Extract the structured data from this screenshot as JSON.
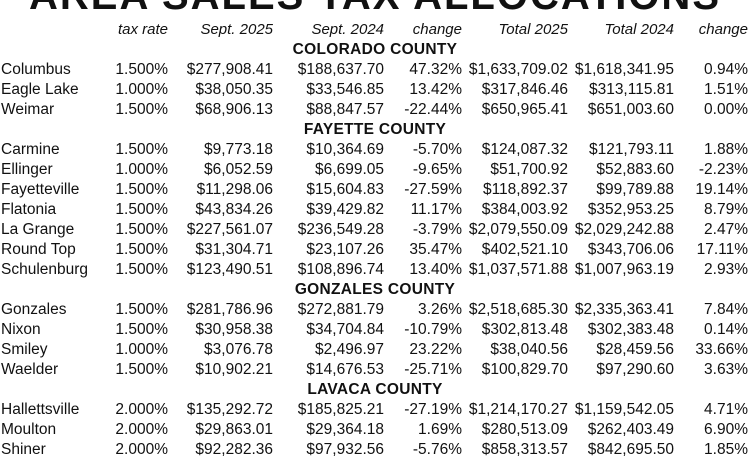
{
  "title": "AREA SALES TAX ALLOCATIONS",
  "headers": {
    "tax_rate": "tax rate",
    "sept_2025": "Sept. 2025",
    "sept_2024": "Sept. 2024",
    "change": "change",
    "total_2025": "Total 2025",
    "total_2024": "Total 2024",
    "change2": "change"
  },
  "sections": [
    {
      "county": "COLORADO COUNTY",
      "rows": [
        [
          "Columbus",
          "1.500%",
          "$277,908.41",
          "$188,637.70",
          "47.32%",
          "$1,633,709.02",
          "$1,618,341.95",
          "0.94%"
        ],
        [
          "Eagle Lake",
          "1.000%",
          "$38,050.35",
          "$33,546.85",
          "13.42%",
          "$317,846.46",
          "$313,115.81",
          "1.51%"
        ],
        [
          "Weimar",
          "1.500%",
          "$68,906.13",
          "$88,847.57",
          "-22.44%",
          "$650,965.41",
          "$651,003.60",
          "0.00%"
        ]
      ]
    },
    {
      "county": "FAYETTE COUNTY",
      "rows": [
        [
          "Carmine",
          "1.500%",
          "$9,773.18",
          "$10,364.69",
          "-5.70%",
          "$124,087.32",
          "$121,793.11",
          "1.88%"
        ],
        [
          "Ellinger",
          "1.000%",
          "$6,052.59",
          "$6,699.05",
          "-9.65%",
          "$51,700.92",
          "$52,883.60",
          "-2.23%"
        ],
        [
          "Fayetteville",
          "1.500%",
          "$11,298.06",
          "$15,604.83",
          "-27.59%",
          "$118,892.37",
          "$99,789.88",
          "19.14%"
        ],
        [
          "Flatonia",
          "1.500%",
          "$43,834.26",
          "$39,429.82",
          "11.17%",
          "$384,003.92",
          "$352,953.25",
          "8.79%"
        ],
        [
          "La Grange",
          "1.500%",
          "$227,561.07",
          "$236,549.28",
          "-3.79%",
          "$2,079,550.09",
          "$2,029,242.88",
          "2.47%"
        ],
        [
          "Round Top",
          "1.500%",
          "$31,304.71",
          "$23,107.26",
          "35.47%",
          "$402,521.10",
          "$343,706.06",
          "17.11%"
        ],
        [
          "Schulenburg",
          "1.500%",
          "$123,490.51",
          "$108,896.74",
          "13.40%",
          "$1,037,571.88",
          "$1,007,963.19",
          "2.93%"
        ]
      ]
    },
    {
      "county": "GONZALES COUNTY",
      "rows": [
        [
          "Gonzales",
          "1.500%",
          "$281,786.96",
          "$272,881.79",
          "3.26%",
          "$2,518,685.30",
          "$2,335,363.41",
          "7.84%"
        ],
        [
          "Nixon",
          "1.500%",
          "$30,958.38",
          "$34,704.84",
          "-10.79%",
          "$302,813.48",
          "$302,383.48",
          "0.14%"
        ],
        [
          "Smiley",
          "1.000%",
          "$3,076.78",
          "$2,496.97",
          "23.22%",
          "$38,040.56",
          "$28,459.56",
          "33.66%"
        ],
        [
          "Waelder",
          "1.500%",
          "$10,902.21",
          "$14,676.53",
          "-25.71%",
          "$100,829.70",
          "$97,290.60",
          "3.63%"
        ]
      ]
    },
    {
      "county": "LAVACA COUNTY",
      "rows": [
        [
          "Hallettsville",
          "2.000%",
          "$135,292.72",
          "$185,825.21",
          "-27.19%",
          "$1,214,170.27",
          "$1,159,542.05",
          "4.71%"
        ],
        [
          "Moulton",
          "2.000%",
          "$29,863.01",
          "$29,364.18",
          "1.69%",
          "$280,513.09",
          "$262,403.49",
          "6.90%"
        ],
        [
          "Shiner",
          "2.000%",
          "$92,282.36",
          "$97,932.56",
          "-5.76%",
          "$858,313.57",
          "$842,695.50",
          "1.85%"
        ]
      ]
    }
  ]
}
